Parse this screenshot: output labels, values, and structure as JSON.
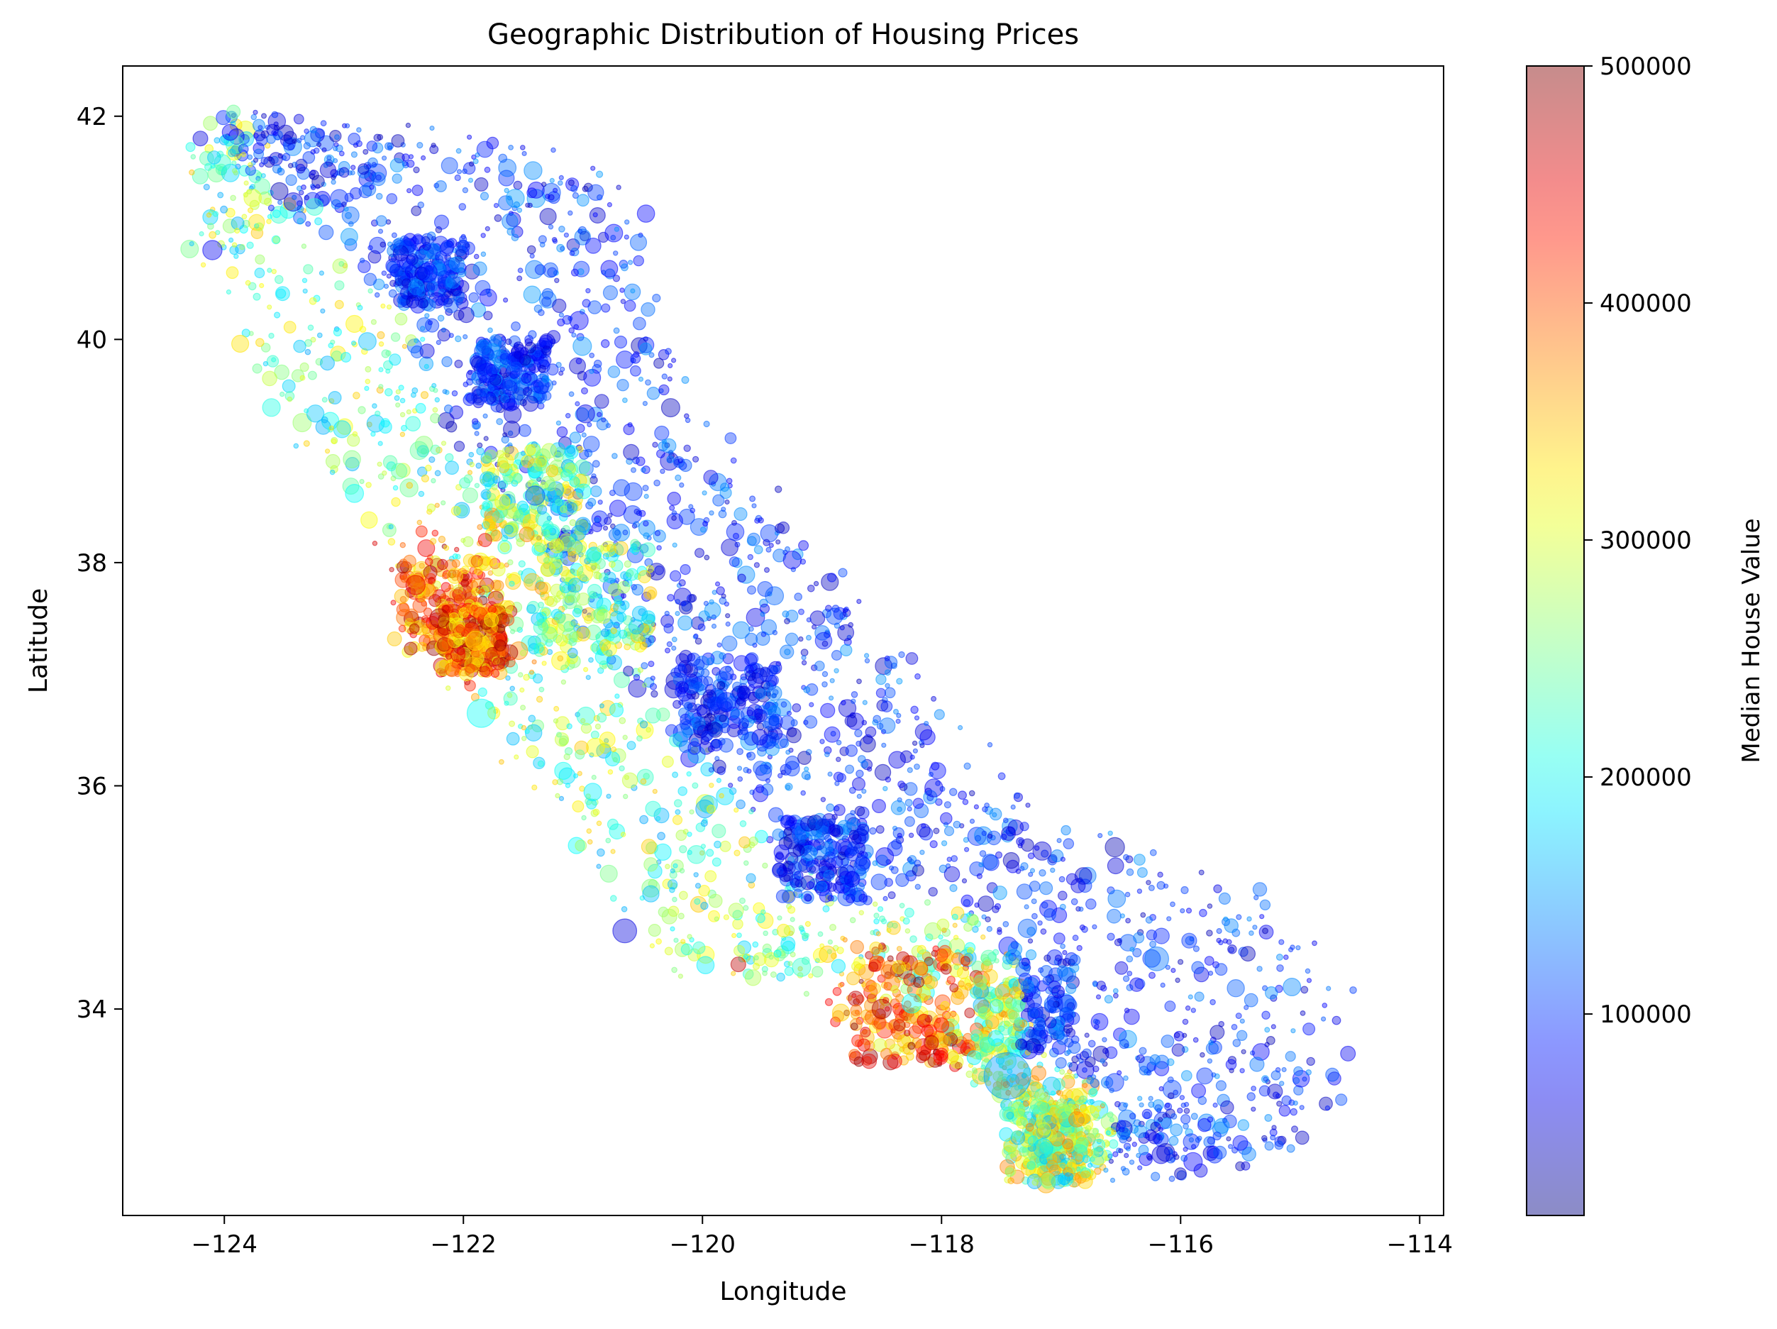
{
  "chart_data": {
    "type": "scatter",
    "title": "Geographic Distribution of Housing Prices",
    "xlabel": "Longitude",
    "ylabel": "Latitude",
    "xlim": [
      -124.85,
      -113.8
    ],
    "ylim": [
      32.15,
      42.45
    ],
    "x_ticks": [
      -124,
      -122,
      -120,
      -118,
      -116,
      -114
    ],
    "y_ticks": [
      34,
      36,
      38,
      40,
      42
    ],
    "x_tick_labels": [
      "−124",
      "−122",
      "−120",
      "−118",
      "−116",
      "−114"
    ],
    "y_tick_labels": [
      "34",
      "36",
      "38",
      "40",
      "42"
    ],
    "grid": false,
    "point_alpha": 0.4,
    "size_encoding": "population",
    "colormap": "jet",
    "colorbar": {
      "label": "Median House Value",
      "range": [
        15000,
        500000
      ],
      "ticks": [
        100000,
        200000,
        300000,
        400000,
        500000
      ],
      "tick_labels": [
        "100000",
        "200000",
        "300000",
        "400000",
        "500000"
      ]
    },
    "sample_points": [
      {
        "lon": -124.2,
        "lat": 41.8,
        "value": 60000,
        "size": 2
      },
      {
        "lon": -124.1,
        "lat": 40.8,
        "value": 70000,
        "size": 3
      },
      {
        "lon": -122.3,
        "lat": 40.6,
        "value": 80000,
        "size": 3
      },
      {
        "lon": -121.8,
        "lat": 39.7,
        "value": 80000,
        "size": 3
      },
      {
        "lon": -121.4,
        "lat": 38.6,
        "value": 110000,
        "size": 3
      },
      {
        "lon": -122.4,
        "lat": 37.8,
        "value": 450000,
        "size": 3
      },
      {
        "lon": -122.2,
        "lat": 37.5,
        "value": 480000,
        "size": 3
      },
      {
        "lon": -121.9,
        "lat": 37.3,
        "value": 330000,
        "size": 3
      },
      {
        "lon": -121.85,
        "lat": 36.65,
        "value": 200000,
        "size": 5
      },
      {
        "lon": -119.8,
        "lat": 36.75,
        "value": 90000,
        "size": 3
      },
      {
        "lon": -120.65,
        "lat": 34.7,
        "value": 60000,
        "size": 4
      },
      {
        "lon": -119.7,
        "lat": 34.4,
        "value": 470000,
        "size": 2
      },
      {
        "lon": -118.5,
        "lat": 34.0,
        "value": 480000,
        "size": 3
      },
      {
        "lon": -118.25,
        "lat": 34.05,
        "value": 200000,
        "size": 3
      },
      {
        "lon": -117.45,
        "lat": 33.4,
        "value": 150000,
        "size": 9
      },
      {
        "lon": -117.15,
        "lat": 32.75,
        "value": 180000,
        "size": 3
      },
      {
        "lon": -116.55,
        "lat": 35.45,
        "value": 40000,
        "size": 3
      },
      {
        "lon": -116.2,
        "lat": 34.45,
        "value": 130000,
        "size": 4
      },
      {
        "lon": -114.6,
        "lat": 33.6,
        "value": 70000,
        "size": 2
      },
      {
        "lon": -115.5,
        "lat": 32.8,
        "value": 80000,
        "size": 2
      }
    ]
  }
}
